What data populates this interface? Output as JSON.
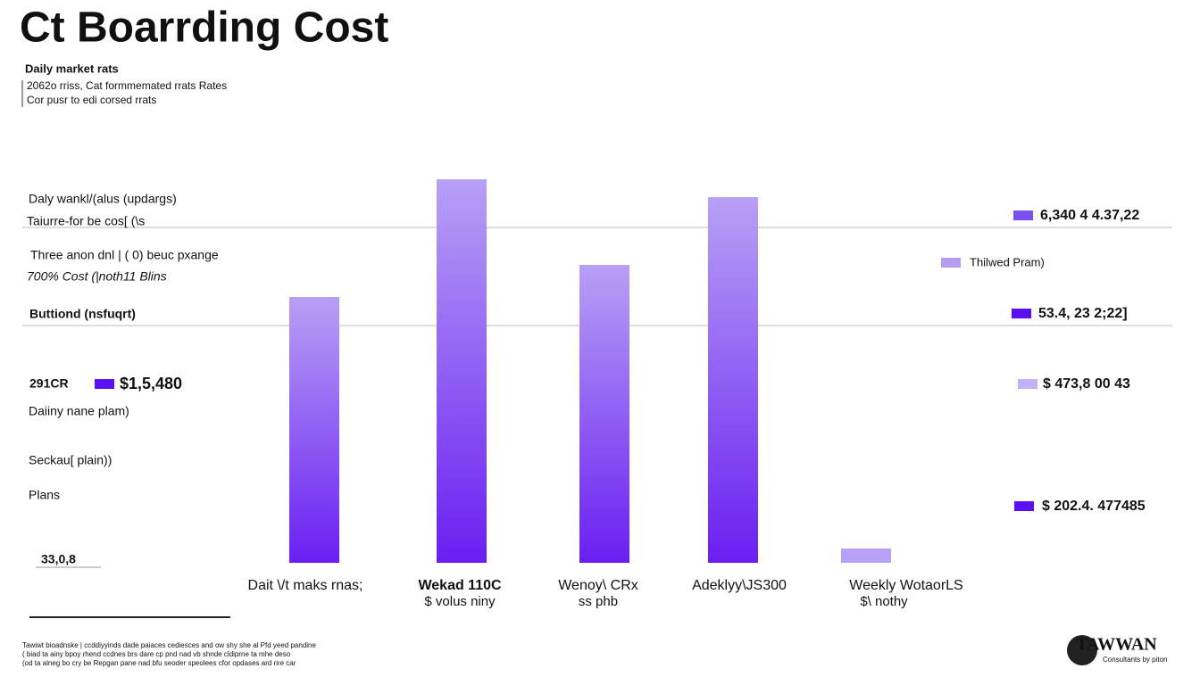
{
  "chart_data": {
    "type": "bar",
    "title": "Ct Boarrding Cost",
    "subtitle": [
      "Daily market rats",
      "2062o rriss, Cat formmemated rrats Rates",
      "Cor pusr to edi corsed rrats"
    ],
    "categories": [
      "Dait \\/t maks rnas;",
      "Wekad 110C",
      "Wenoy\\ CRx",
      "Adeklyy\\JS300",
      "Weekly  WotaorLS"
    ],
    "category_sublabels": [
      null,
      "$  volus niny",
      "ss phb",
      null,
      "$\\ nothy"
    ],
    "values": [
      298,
      430,
      334,
      410,
      16
    ],
    "bar_colors": [
      "#6a1ff2",
      "#6a1ff2",
      "#6a1ff2",
      "#6a1ff2",
      "#b7a0f5"
    ],
    "gradient_top": "#b7a0f5",
    "ylim": [
      0,
      450
    ],
    "annotations": [
      "Daly wankl/(alus (updargs)",
      "Taiurre-for be cos[ (\\s",
      "Three anon dnl | ( 0) beuc pxange",
      "700% Cost (|noth11 Blins",
      "Buttiond (nsfuqrt)",
      "Daiiny nane plam)",
      "Seckau[ plain))",
      "Plans",
      "33,0,8"
    ],
    "left_item": {
      "label": "291CR",
      "color": "#5a12f0",
      "text": "$1,5,480"
    },
    "right_legend": [
      {
        "color": "#7b4ff0",
        "text": "6,340 4 4.37,22"
      },
      {
        "color": "#b89cf0",
        "text": "Thilwed Pram)"
      },
      {
        "color": "#5a10f0",
        "text": "53.4, 23 2;22]"
      },
      {
        "color": "#c4b0f5",
        "text": "$ 473,8 00 43"
      },
      {
        "color": "#5a10f0",
        "text": "$ 202.4. 477485"
      }
    ],
    "footnote": [
      "Tawiwt bioadnske | ccddiyyinds dade paiaces cediesces and ow shy she al Pfd yeed pandine",
      "( biad ta ainy bpoy rhend ccdnes brs dare cp pnd nad vb shnde cldiprne ta mhe deso",
      "(od ta alneg bo cry be Repgan pane nad bfu seoder speolees cfor opdases ard rire car"
    ],
    "logo": {
      "name": "TAWWAN",
      "tagline": "Consultants by piton"
    }
  }
}
